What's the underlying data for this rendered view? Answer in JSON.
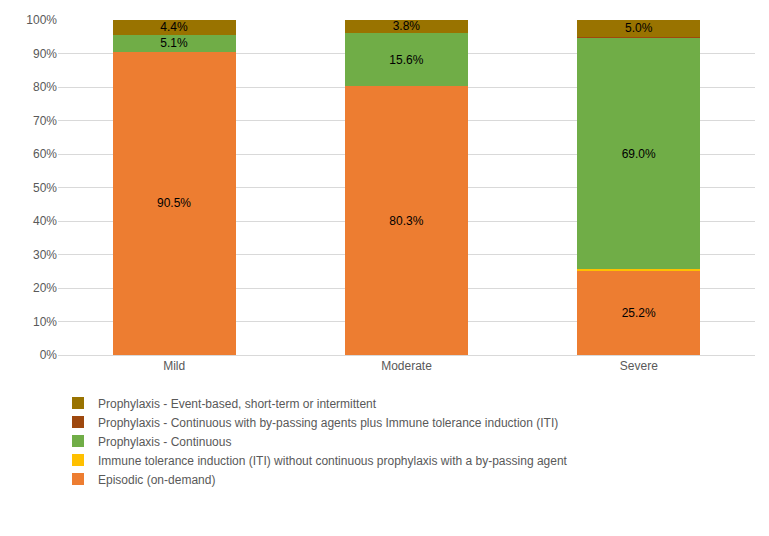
{
  "chart_data": {
    "type": "bar",
    "stacked": true,
    "data_labels": true,
    "grid": true,
    "legend": "bottom left",
    "categories": [
      "Mild",
      "Moderate",
      "Severe"
    ],
    "ylim": [
      0,
      100
    ],
    "yticks": [
      {
        "value": 0,
        "label": "0%"
      },
      {
        "value": 10,
        "label": "10%"
      },
      {
        "value": 20,
        "label": "20%"
      },
      {
        "value": 30,
        "label": "30%"
      },
      {
        "value": 40,
        "label": "40%"
      },
      {
        "value": 50,
        "label": "50%"
      },
      {
        "value": 60,
        "label": "60%"
      },
      {
        "value": 70,
        "label": "70%"
      },
      {
        "value": 80,
        "label": "80%"
      },
      {
        "value": 90,
        "label": "90%"
      },
      {
        "value": 100,
        "label": "100%"
      }
    ],
    "series": [
      {
        "name": "Episodic (on-demand)",
        "color": "#ED7D31",
        "values": [
          90.5,
          80.3,
          25.2
        ],
        "value_labels": [
          "90.5%",
          "80.3%",
          "25.2%"
        ]
      },
      {
        "name": "Immune tolerance induction (ITI) without continuous prophylaxis with a by-passing agent",
        "color": "#FFC000",
        "values": [
          0,
          0.1,
          0.4
        ],
        "value_labels": [
          null,
          null,
          null
        ]
      },
      {
        "name": "Prophylaxis - Continuous",
        "color": "#70AD47",
        "values": [
          5.1,
          15.6,
          69.0
        ],
        "value_labels": [
          "5.1%",
          "15.6%",
          "69.0%"
        ]
      },
      {
        "name": "Prophylaxis - Continuous with by-passing agents plus Immune tolerance induction (ITI)",
        "color": "#9E480E",
        "values": [
          0,
          0.2,
          0.4
        ],
        "value_labels": [
          null,
          null,
          null
        ]
      },
      {
        "name": "Prophylaxis - Event-based, short-term or intermittent",
        "color": "#997300",
        "values": [
          4.4,
          3.8,
          5.0
        ],
        "value_labels": [
          "4.4%",
          "3.8%",
          "5.0%"
        ]
      }
    ]
  }
}
